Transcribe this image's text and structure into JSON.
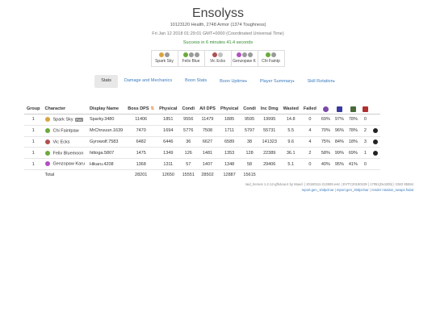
{
  "header": {
    "title": "Ensolyss",
    "stats_line": "10123120 Health, 2748 Armor (1374 Toughness)",
    "date_line": "Fri Jan 12 2018 01:29:01 GMT+0000 (Coordinated Universal Time)",
    "result_line": "Success in 6 minutes 41.4 seconds"
  },
  "players": [
    {
      "name": "Spark Sky",
      "colors": [
        "#d9a441",
        "#9a9a9a"
      ]
    },
    {
      "name": "Felix Blue",
      "colors": [
        "#6aaa3a",
        "#9a9a9a",
        "#9a9a9a"
      ]
    },
    {
      "name": "Vic Ecks",
      "colors": [
        "#b05050",
        "#c0c0c0"
      ]
    },
    {
      "name": "Genzopaw K",
      "colors": [
        "#b050c0",
        "#9a9a9a",
        "#9a9a9a"
      ]
    },
    {
      "name": "Chi Faintp",
      "colors": [
        "#6aaa3a",
        "#9a9a9a"
      ]
    }
  ],
  "tabs": [
    {
      "label": "Stats",
      "caret": false
    },
    {
      "label": "Damage and Mechanics",
      "caret": false
    },
    {
      "label": "Boon Stats",
      "caret": false
    },
    {
      "label": "Boon Uptime",
      "caret": true
    },
    {
      "label": "Player Summary",
      "caret": true
    },
    {
      "label": "Skill Rotation",
      "caret": true
    }
  ],
  "caret_glyph": "▾",
  "table": {
    "headers": [
      "Group",
      "Character",
      "Display Name",
      "Boss DPS",
      "Physical",
      "Condi",
      "All DPS",
      "Physical",
      "Condi",
      "Inc Dmg",
      "Wasted",
      "Failed"
    ],
    "sort_icon": "⇅",
    "icon_columns": [
      {
        "icon": "circle-dps-icon",
        "color": "#7a4aa8"
      },
      {
        "icon": "shield-icon",
        "color": "#3a3aa0"
      },
      {
        "icon": "might-icon",
        "color": "#4a6a3a"
      },
      {
        "icon": "heart-icon",
        "color": "#b03030"
      }
    ],
    "rows": [
      {
        "group": "1",
        "character": "Spark Sky",
        "badge": "PoV",
        "icon_color": "#d9a441",
        "display": "Sparky.3480",
        "boss_dps": "11406",
        "boss_phys": "1851",
        "boss_condi": "9556",
        "all_dps": "11479",
        "all_phys": "1885",
        "all_condi": "9595",
        "inc": "19995",
        "wasted": "14.8",
        "failed": "0",
        "p1": "69%",
        "p2": "97%",
        "p3": "78%",
        "deaths": "0",
        "skull": false
      },
      {
        "group": "1",
        "character": "Chi Faintpaw",
        "badge": "",
        "icon_color": "#6aaa3a",
        "display": "MrChruuun.1639",
        "boss_dps": "7470",
        "boss_phys": "1694",
        "boss_condi": "5776",
        "all_dps": "7508",
        "all_phys": "1711",
        "all_condi": "5797",
        "inc": "55731",
        "wasted": "5.5",
        "failed": "4",
        "p1": "70%",
        "p2": "96%",
        "p3": "78%",
        "deaths": "2",
        "skull": true
      },
      {
        "group": "1",
        "character": "Vic Ecks",
        "badge": "",
        "icon_color": "#b05050",
        "display": "Gyrowolf.7583",
        "boss_dps": "6482",
        "boss_phys": "6446",
        "boss_condi": "36",
        "all_dps": "6627",
        "all_phys": "6589",
        "all_condi": "38",
        "inc": "141323",
        "wasted": "9.6",
        "failed": "4",
        "p1": "75%",
        "p2": "84%",
        "p3": "18%",
        "deaths": "3",
        "skull": true
      },
      {
        "group": "1",
        "character": "Felix Bluemoon",
        "badge": "",
        "icon_color": "#6aaa3a",
        "display": "hittoga.5807",
        "boss_dps": "1475",
        "boss_phys": "1349",
        "boss_condi": "126",
        "all_dps": "1481",
        "all_phys": "1353",
        "all_condi": "128",
        "inc": "22389",
        "wasted": "36.1",
        "failed": "2",
        "p1": "58%",
        "p2": "99%",
        "p3": "69%",
        "deaths": "1",
        "skull": true
      },
      {
        "group": "1",
        "character": "Genzopaw Karu",
        "badge": "",
        "icon_color": "#b050c0",
        "display": "Hikaru.4208",
        "boss_dps": "1368",
        "boss_phys": "1311",
        "boss_condi": "57",
        "all_dps": "1407",
        "all_phys": "1348",
        "all_condi": "58",
        "inc": "29406",
        "wasted": "5.1",
        "failed": "0",
        "p1": "40%",
        "p2": "95%",
        "p3": "41%",
        "deaths": "0",
        "skull": false
      }
    ],
    "total": {
      "label": "Total",
      "boss_dps": "28201",
      "boss_phys": "12650",
      "boss_condi": "15551",
      "all_dps": "28502",
      "all_phys": "12887",
      "all_condi": "15615"
    }
  },
  "footer": {
    "line1": "raid_heroes 1.2-12-gf54eac4 by Maed. | 20180111-213509.evtc | EVTC20180109 | 17051(0x420b) | GW2 85594",
    "line2_parts": [
      "report.gen_10dpclnar",
      "report.gen_30dpclnar",
      "render rotation_swap1.fsdat"
    ]
  }
}
